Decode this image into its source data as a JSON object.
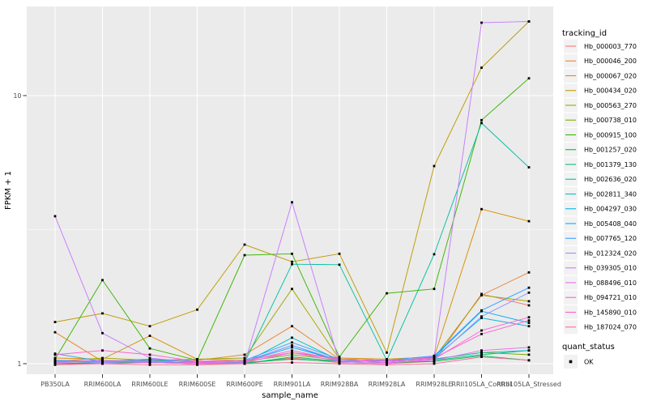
{
  "figure": {
    "background": "#FFFFFF",
    "panel_background": "#EBEBEB",
    "grid_color": "#FFFFFF",
    "tick_color": "#333333",
    "tick_label_color": "#4D4D4D",
    "axis_title_color": "#000000",
    "point_color": "#000000",
    "legend_key_fill": "#F2F2F2"
  },
  "chart_data": {
    "type": "line",
    "title": "",
    "xlabel": "sample_name",
    "ylabel": "FPKM + 1",
    "y_scale": "log10",
    "y_breaks": [
      1,
      10
    ],
    "y_minor_breaks": [
      3.162
    ],
    "ylim": [
      0.97,
      21.6
    ],
    "grid": true,
    "legend_position": "right",
    "categories": [
      "PB350LA",
      "RRIM600LA",
      "RRIM600LE",
      "RRIM600SE",
      "RRIM600PE",
      "RRIM901LA",
      "RRIM928BA",
      "RRIM928LA",
      "RRIM928LE",
      "RRII105LA_Control",
      "RRII105LA_Stressed"
    ],
    "series": [
      {
        "name": "Hb_000003_770",
        "color": "#F8766D",
        "values": [
          1.0,
          1.0,
          1.01,
          1.0,
          1.0,
          1.05,
          1.01,
          1.0,
          1.02,
          1.82,
          1.65
        ]
      },
      {
        "name": "Hb_000046_200",
        "color": "#EA8331",
        "values": [
          1.31,
          1.02,
          1.02,
          1.03,
          1.08,
          1.38,
          1.04,
          1.03,
          1.05,
          1.8,
          2.19
        ]
      },
      {
        "name": "Hb_000067_020",
        "color": "#D89000",
        "values": [
          1.05,
          1.04,
          1.27,
          1.04,
          1.03,
          1.1,
          1.05,
          1.04,
          1.06,
          3.77,
          3.4
        ]
      },
      {
        "name": "Hb_000434_020",
        "color": "#C09B00",
        "values": [
          1.43,
          1.54,
          1.38,
          1.59,
          2.78,
          2.4,
          2.57,
          1.1,
          5.46,
          12.7,
          18.9
        ]
      },
      {
        "name": "Hb_000563_270",
        "color": "#A3A500",
        "values": [
          1.02,
          1.05,
          1.03,
          1.04,
          1.05,
          1.9,
          1.04,
          1.03,
          1.05,
          1.8,
          1.71
        ]
      },
      {
        "name": "Hb_000738_010",
        "color": "#7CAE00",
        "values": [
          1.01,
          1.03,
          1.02,
          1.01,
          1.02,
          1.08,
          1.03,
          1.02,
          1.04,
          1.1,
          1.08
        ]
      },
      {
        "name": "Hb_000915_100",
        "color": "#39B600",
        "values": [
          1.04,
          2.05,
          1.14,
          1.03,
          2.54,
          2.57,
          1.06,
          1.83,
          1.9,
          8.1,
          11.6
        ]
      },
      {
        "name": "Hb_001257_020",
        "color": "#00BB4E",
        "values": [
          1.0,
          1.01,
          1.01,
          1.0,
          1.01,
          1.04,
          1.02,
          1.01,
          1.02,
          1.07,
          1.03
        ]
      },
      {
        "name": "Hb_001379_130",
        "color": "#00BF7D",
        "values": [
          1.02,
          1.01,
          1.02,
          1.01,
          1.0,
          1.06,
          1.02,
          1.01,
          1.03,
          1.08,
          1.12
        ]
      },
      {
        "name": "Hb_002636_020",
        "color": "#00C1A3",
        "values": [
          1.03,
          1.02,
          1.04,
          1.02,
          1.01,
          2.35,
          2.34,
          1.03,
          2.56,
          7.9,
          5.4
        ]
      },
      {
        "name": "Hb_002811_340",
        "color": "#00BFC4",
        "values": [
          1.02,
          1.01,
          1.03,
          1.02,
          1.01,
          1.25,
          1.03,
          1.02,
          1.04,
          1.1,
          1.12
        ]
      },
      {
        "name": "Hb_004297_030",
        "color": "#00B8E7",
        "values": [
          1.01,
          1.02,
          1.01,
          1.01,
          1.02,
          1.17,
          1.02,
          1.03,
          1.05,
          1.48,
          1.38
        ]
      },
      {
        "name": "Hb_005408_040",
        "color": "#00ACFC",
        "values": [
          1.03,
          1.02,
          1.02,
          1.01,
          1.02,
          1.15,
          1.03,
          1.02,
          1.06,
          1.57,
          1.42
        ]
      },
      {
        "name": "Hb_007765_120",
        "color": "#35A2FF",
        "values": [
          1.09,
          1.02,
          1.03,
          1.02,
          1.03,
          1.2,
          1.04,
          1.03,
          1.07,
          1.58,
          1.92
        ]
      },
      {
        "name": "Hb_012324_020",
        "color": "#9590FF",
        "values": [
          1.02,
          1.01,
          1.02,
          1.01,
          1.02,
          1.17,
          1.03,
          1.02,
          1.04,
          1.5,
          1.84
        ]
      },
      {
        "name": "Hb_039305_010",
        "color": "#C77CFF",
        "values": [
          3.55,
          1.3,
          1.05,
          1.01,
          1.0,
          4.0,
          1.01,
          1.0,
          1.07,
          18.7,
          18.9
        ]
      },
      {
        "name": "Hb_088496_010",
        "color": "#E76BF3",
        "values": [
          1.01,
          1.02,
          1.01,
          1.0,
          1.01,
          1.1,
          1.02,
          1.01,
          1.03,
          1.12,
          1.15
        ]
      },
      {
        "name": "Hb_094721_010",
        "color": "#FA62DB",
        "values": [
          1.02,
          1.03,
          1.02,
          1.01,
          1.02,
          1.12,
          1.03,
          1.02,
          1.04,
          1.33,
          1.49
        ]
      },
      {
        "name": "Hb_145890_010",
        "color": "#FF61CC",
        "values": [
          1.08,
          1.12,
          1.08,
          1.02,
          1.03,
          1.1,
          1.04,
          1.03,
          1.05,
          1.29,
          1.45
        ]
      },
      {
        "name": "Hb_187024_070",
        "color": "#FF6A98",
        "values": [
          0.99,
          1.0,
          0.99,
          0.99,
          1.0,
          1.01,
          1.0,
          0.99,
          1.0,
          1.06,
          1.03
        ]
      }
    ],
    "legend": {
      "color_title": "tracking_id",
      "shape_title": "quant_status",
      "shape_items": [
        {
          "label": "OK"
        }
      ]
    }
  }
}
